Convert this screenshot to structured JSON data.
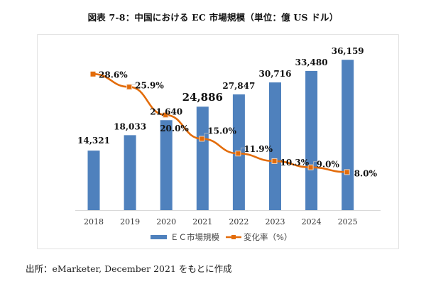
{
  "title": "図表 7-8：中国における EC 市場規模（単位：億 US ドル）",
  "source": "出所：eMarketer, December 2021 をもとに作成",
  "colors": {
    "bar": "#4f81bd",
    "line": "#e36c0a",
    "axis": "#d9d9d9"
  },
  "chart_data": {
    "type": "bar",
    "title": "図表 7-8：中国における EC 市場規模（単位：億 US ドル）",
    "xlabel": "",
    "ylabel": "",
    "categories": [
      "2018",
      "2019",
      "2020",
      "2021",
      "2022",
      "2023",
      "2024",
      "2025"
    ],
    "series": [
      {
        "name": "ＥＣ市場規模",
        "type": "bar",
        "axis": "left",
        "values": [
          14321,
          18033,
          21640,
          24886,
          27847,
          30716,
          33480,
          36159
        ],
        "labels": [
          "14,321",
          "18,033",
          "21,640",
          "24,886",
          "27,847",
          "30,716",
          "33,480",
          "36,159"
        ]
      },
      {
        "name": "変化率（%）",
        "type": "line",
        "axis": "right",
        "values": [
          28.6,
          25.9,
          20.0,
          15.0,
          11.9,
          10.3,
          9.0,
          8.0
        ],
        "labels": [
          "28.6%",
          "25.9%",
          "20.0%",
          "15.0%",
          "11.9%",
          "10.3%",
          "9.0%",
          "8.0%"
        ]
      }
    ],
    "ylim": [
      0,
      42000
    ],
    "y2lim": [
      0,
      36.7
    ],
    "grid": false,
    "legend": "bottom"
  }
}
